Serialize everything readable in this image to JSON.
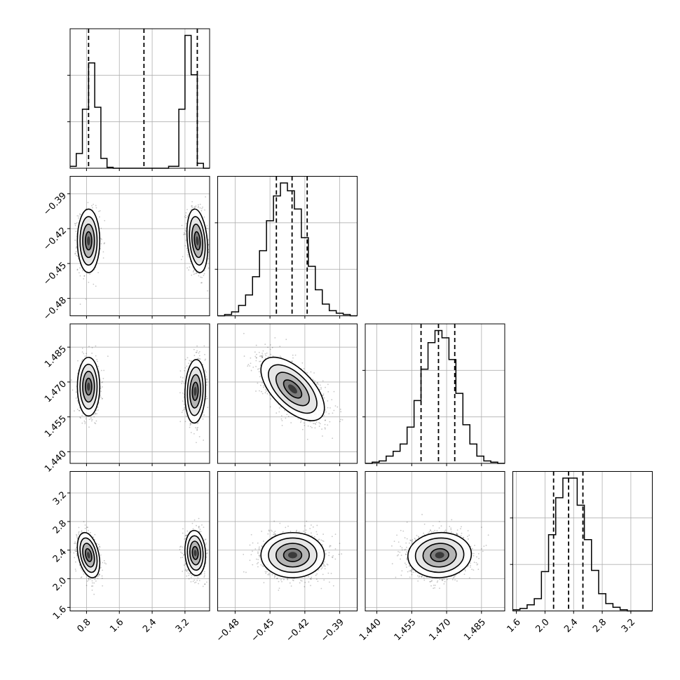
{
  "figure": {
    "style": {
      "frame_color": "#000000",
      "grid_color": "#b0b0b0",
      "point_color": "#000000",
      "histogram_color": "#000000",
      "quantile_line_style": "dashed"
    },
    "parameters": [
      {
        "range": [
          0.4,
          3.8
        ],
        "ticks": [
          "0.8",
          "1.6",
          "2.4",
          "3.2"
        ],
        "tick_values": [
          0.8,
          1.6,
          2.4,
          3.2
        ]
      },
      {
        "range": [
          -0.495,
          -0.375
        ],
        "ticks": [
          "−0.48",
          "−0.45",
          "−0.42",
          "−0.39"
        ],
        "tick_values": [
          -0.48,
          -0.45,
          -0.42,
          -0.39
        ]
      },
      {
        "range": [
          1.435,
          1.495
        ],
        "ticks": [
          "1.440",
          "1.455",
          "1.470",
          "1.485"
        ],
        "tick_values": [
          1.44,
          1.455,
          1.47,
          1.485
        ]
      },
      {
        "range": [
          1.55,
          3.5
        ],
        "ticks": [
          "1.6",
          "2.0",
          "2.4",
          "2.8",
          "3.2"
        ],
        "tick_values": [
          1.6,
          2.0,
          2.4,
          2.8,
          3.2
        ]
      }
    ]
  },
  "chart_data": {
    "type": "corner",
    "grid": true,
    "parameters": 4,
    "marginal_histograms": [
      {
        "parameter": 0,
        "bin_edges": [
          0.4,
          0.55,
          0.7,
          0.85,
          1.0,
          1.15,
          1.3,
          1.45,
          1.6,
          2.0,
          2.4,
          2.8,
          3.05,
          3.2,
          3.35,
          3.5,
          3.65,
          3.8
        ],
        "counts": [
          2,
          15,
          60,
          107,
          62,
          10,
          1,
          0,
          0,
          0,
          0,
          2,
          60,
          135,
          95,
          5,
          0
        ],
        "quantiles": [
          0.85,
          2.2,
          3.5
        ]
      },
      {
        "parameter": 1,
        "bin_edges": [
          -0.495,
          -0.489,
          -0.483,
          -0.477,
          -0.471,
          -0.465,
          -0.459,
          -0.453,
          -0.447,
          -0.441,
          -0.435,
          -0.429,
          -0.423,
          -0.417,
          -0.411,
          -0.405,
          -0.399,
          -0.393,
          -0.387,
          -0.381,
          -0.375
        ],
        "counts": [
          0,
          1,
          3,
          8,
          16,
          30,
          50,
          73,
          92,
          102,
          96,
          82,
          60,
          38,
          20,
          9,
          4,
          2,
          1,
          0
        ],
        "quantiles": [
          -0.4445,
          -0.431,
          -0.418
        ]
      },
      {
        "parameter": 2,
        "bin_edges": [
          1.435,
          1.438,
          1.441,
          1.444,
          1.447,
          1.45,
          1.453,
          1.456,
          1.459,
          1.462,
          1.465,
          1.468,
          1.471,
          1.474,
          1.477,
          1.48,
          1.483,
          1.486,
          1.489,
          1.492,
          1.495
        ],
        "counts": [
          0,
          1,
          2,
          6,
          10,
          16,
          30,
          52,
          78,
          100,
          110,
          104,
          86,
          58,
          32,
          16,
          6,
          2,
          1,
          0
        ],
        "quantiles": [
          1.459,
          1.4665,
          1.4735
        ]
      },
      {
        "parameter": 3,
        "bin_edges": [
          1.55,
          1.65,
          1.75,
          1.85,
          1.95,
          2.05,
          2.15,
          2.25,
          2.35,
          2.45,
          2.55,
          2.65,
          2.75,
          2.85,
          2.95,
          3.05,
          3.15,
          3.25,
          3.35,
          3.45
        ],
        "counts": [
          1,
          2,
          5,
          10,
          32,
          62,
          92,
          108,
          108,
          86,
          58,
          33,
          14,
          6,
          3,
          1,
          0,
          0,
          0
        ],
        "quantiles": [
          2.12,
          2.33,
          2.53
        ]
      }
    ],
    "joint_distributions": [
      {
        "x": 0,
        "y": 1,
        "modes": [
          {
            "center": [
              0.85,
              -0.4305
            ],
            "sd": [
              0.13,
              0.013
            ],
            "corr": 0.0,
            "weight": 0.48
          },
          {
            "center": [
              3.5,
              -0.4305
            ],
            "sd": [
              0.12,
              0.013
            ],
            "corr": -0.25,
            "weight": 0.52
          }
        ]
      },
      {
        "x": 0,
        "y": 2,
        "modes": [
          {
            "center": [
              0.85,
              1.468
            ],
            "sd": [
              0.13,
              0.006
            ],
            "corr": 0.0,
            "weight": 0.48
          },
          {
            "center": [
              3.45,
              1.466
            ],
            "sd": [
              0.12,
              0.0065
            ],
            "corr": 0.1,
            "weight": 0.52
          }
        ]
      },
      {
        "x": 0,
        "y": 3,
        "modes": [
          {
            "center": [
              0.85,
              2.33
            ],
            "sd": [
              0.13,
              0.15
            ],
            "corr": -0.35,
            "weight": 0.48
          },
          {
            "center": [
              3.45,
              2.36
            ],
            "sd": [
              0.12,
              0.15
            ],
            "corr": -0.1,
            "weight": 0.52
          }
        ]
      },
      {
        "x": 1,
        "y": 2,
        "modes": [
          {
            "center": [
              -0.4305,
              1.467
            ],
            "sd": [
              0.013,
              0.0065
            ],
            "corr": -0.6,
            "weight": 1.0
          }
        ]
      },
      {
        "x": 1,
        "y": 3,
        "modes": [
          {
            "center": [
              -0.4305,
              2.33
            ],
            "sd": [
              0.013,
              0.15
            ],
            "corr": 0.0,
            "weight": 1.0
          }
        ]
      },
      {
        "x": 2,
        "y": 3,
        "modes": [
          {
            "center": [
              1.467,
              2.33
            ],
            "sd": [
              0.0065,
              0.15
            ],
            "corr": 0.05,
            "weight": 1.0
          }
        ]
      }
    ]
  }
}
